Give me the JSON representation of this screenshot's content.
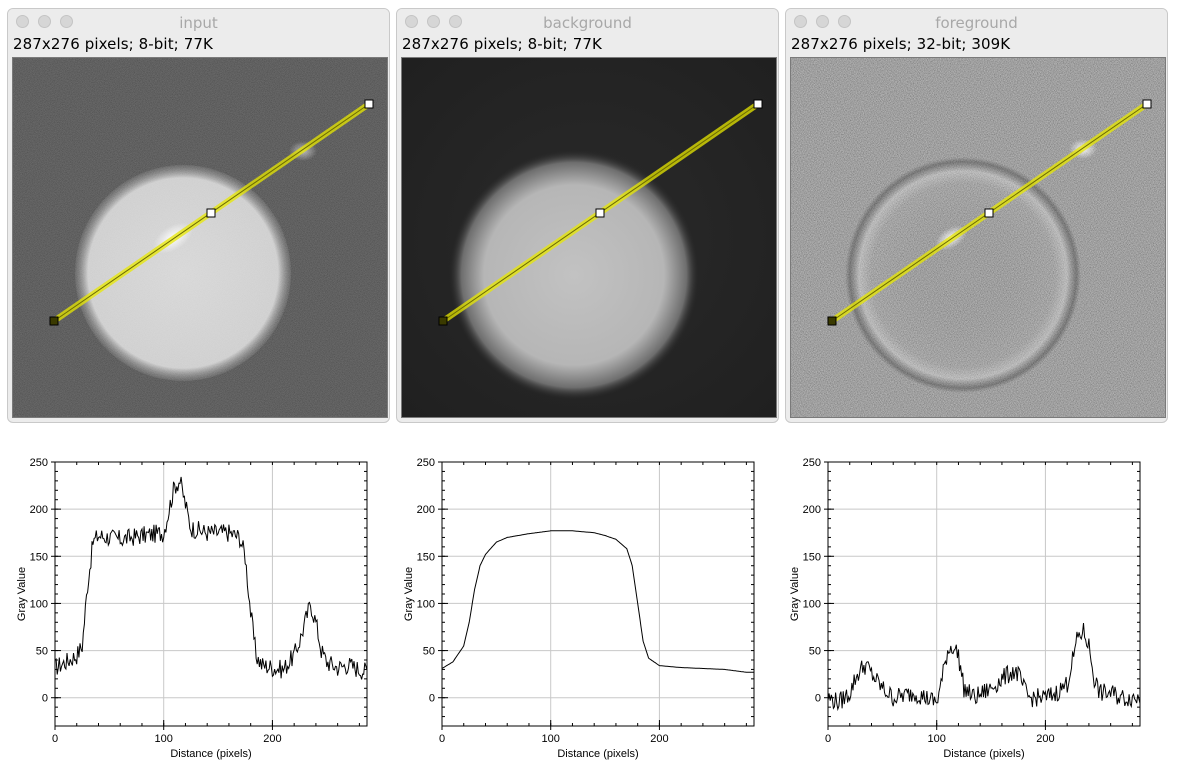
{
  "windows": [
    {
      "title": "input",
      "info": "287x276 pixels; 8-bit; 77K",
      "image": "input",
      "plot": {
        "title": "",
        "xlabel": "Distance (pixels)",
        "ylabel": "Gray Value",
        "xlim": [
          0,
          287
        ],
        "ylim": [
          -30,
          250
        ],
        "xticks": [
          0,
          100,
          200
        ],
        "yticks": [
          0,
          50,
          100,
          150,
          200,
          250
        ]
      }
    },
    {
      "title": "background",
      "info": "287x276 pixels; 8-bit; 77K",
      "image": "background",
      "plot": {
        "title": "",
        "xlabel": "Distance (pixels)",
        "ylabel": "Gray Value",
        "xlim": [
          0,
          287
        ],
        "ylim": [
          -30,
          250
        ],
        "xticks": [
          0,
          100,
          200
        ],
        "yticks": [
          0,
          50,
          100,
          150,
          200,
          250
        ]
      }
    },
    {
      "title": "foreground",
      "info": "287x276 pixels; 32-bit; 309K",
      "image": "foreground",
      "plot": {
        "title": "",
        "xlabel": "Distance (pixels)",
        "ylabel": "Gray Value",
        "xlim": [
          0,
          287
        ],
        "ylim": [
          -30,
          250
        ],
        "xticks": [
          0,
          100,
          200
        ],
        "yticks": [
          0,
          50,
          100,
          150,
          200,
          250
        ]
      }
    }
  ],
  "colors": {
    "line_selection": "#e8e800",
    "plot_line": "#000000",
    "grid": "#c8c8c8"
  },
  "chart_data": [
    {
      "type": "line",
      "xlabel": "Distance (pixels)",
      "ylabel": "Gray Value",
      "xlim": [
        0,
        287
      ],
      "ylim": [
        -30,
        250
      ],
      "grid": true,
      "series": [
        {
          "x": [
            0,
            10,
            20,
            25,
            30,
            35,
            40,
            60,
            80,
            100,
            105,
            110,
            115,
            120,
            125,
            140,
            160,
            170,
            175,
            180,
            185,
            190,
            200,
            210,
            220,
            225,
            230,
            235,
            240,
            245,
            250,
            260,
            270,
            280,
            287
          ],
          "y": [
            32,
            38,
            45,
            55,
            120,
            165,
            172,
            168,
            172,
            175,
            200,
            225,
            230,
            205,
            180,
            175,
            175,
            170,
            150,
            90,
            45,
            35,
            32,
            30,
            45,
            60,
            80,
            100,
            80,
            50,
            38,
            32,
            35,
            30,
            28
          ]
        }
      ]
    },
    {
      "type": "line",
      "xlabel": "Distance (pixels)",
      "ylabel": "Gray Value",
      "xlim": [
        0,
        287
      ],
      "ylim": [
        -30,
        250
      ],
      "grid": true,
      "series": [
        {
          "x": [
            0,
            10,
            20,
            25,
            30,
            35,
            40,
            50,
            60,
            80,
            100,
            120,
            140,
            150,
            160,
            170,
            175,
            180,
            185,
            190,
            200,
            220,
            240,
            260,
            280,
            287
          ],
          "y": [
            31,
            38,
            55,
            80,
            115,
            140,
            152,
            165,
            170,
            174,
            177,
            177,
            175,
            172,
            168,
            158,
            140,
            100,
            60,
            42,
            34,
            32,
            31,
            30,
            27,
            27
          ]
        }
      ]
    },
    {
      "type": "line",
      "xlabel": "Distance (pixels)",
      "ylabel": "Gray Value",
      "xlim": [
        0,
        287
      ],
      "ylim": [
        -30,
        250
      ],
      "grid": true,
      "series": [
        {
          "x": [
            0,
            10,
            20,
            25,
            30,
            35,
            40,
            50,
            60,
            80,
            90,
            100,
            105,
            110,
            115,
            120,
            125,
            135,
            150,
            160,
            170,
            175,
            180,
            185,
            190,
            200,
            210,
            220,
            225,
            230,
            235,
            240,
            245,
            250,
            260,
            270,
            280,
            287
          ],
          "y": [
            0,
            -5,
            5,
            20,
            30,
            35,
            25,
            10,
            0,
            5,
            0,
            -5,
            20,
            50,
            55,
            45,
            10,
            0,
            10,
            20,
            28,
            25,
            10,
            0,
            0,
            0,
            5,
            15,
            40,
            65,
            70,
            55,
            20,
            5,
            5,
            0,
            0,
            0
          ]
        }
      ]
    }
  ]
}
